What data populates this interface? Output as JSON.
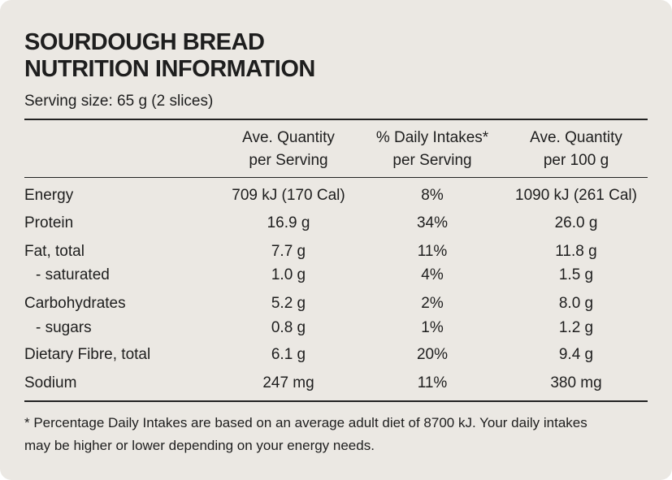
{
  "header": {
    "title": [
      "SOURDOUGH BREAD",
      "NUTRITION INFORMATION"
    ],
    "serving": "Serving size: 65 g (2 slices)"
  },
  "table": {
    "columns": [
      [
        "Ave. Quantity",
        "per Serving"
      ],
      [
        "% Daily Intakes*",
        "per Serving"
      ],
      [
        "Ave. Quantity",
        "per 100 g"
      ]
    ],
    "rows": [
      [
        "Energy",
        "709 kJ (170 Cal)",
        "8%",
        "1090 kJ (261 Cal)"
      ],
      [
        "Protein",
        "16.9 g",
        "34%",
        "26.0 g"
      ],
      [
        "Fat, total",
        "7.7 g",
        "11%",
        "11.8 g"
      ],
      [
        "- saturated",
        "1.0 g",
        "4%",
        "1.5 g"
      ],
      [
        "Carbohydrates",
        "5.2 g",
        "2%",
        "8.0 g"
      ],
      [
        "- sugars",
        "0.8 g",
        "1%",
        "1.2 g"
      ],
      [
        "Dietary Fibre, total",
        "6.1 g",
        "20%",
        "9.4 g"
      ],
      [
        "Sodium",
        "247 mg",
        "11%",
        "380 mg"
      ]
    ]
  },
  "footnote": [
    "* Percentage Daily Intakes are based on an average adult diet of 8700 kJ. Your daily intakes",
    "may be higher or lower depending on your energy needs."
  ]
}
